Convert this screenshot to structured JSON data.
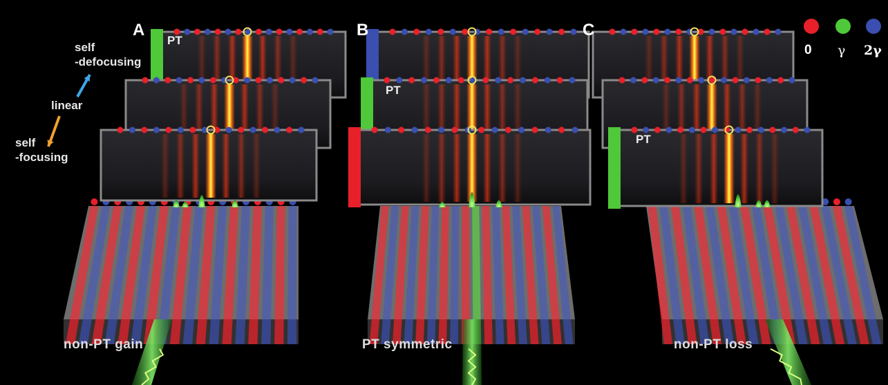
{
  "panels": [
    {
      "letter": "A",
      "caption": "non-PT gain",
      "pt_label": "PT"
    },
    {
      "letter": "B",
      "caption": "PT symmetric",
      "pt_label": "PT"
    },
    {
      "letter": "C",
      "caption": "non-PT loss",
      "pt_label": "PT"
    }
  ],
  "side_labels": {
    "self_defocusing_1": "self",
    "self_defocusing_2": "-defocusing",
    "linear": "linear",
    "self_focusing_1": "self",
    "self_focusing_2": "-focusing"
  },
  "legend": [
    {
      "label": "0",
      "color": "#e8202a"
    },
    {
      "label": "γ",
      "color": "#4fc83a"
    },
    {
      "label": "2γ",
      "color": "#3a4fb0"
    }
  ],
  "colors": {
    "gain": "#e8202a",
    "neutral": "#4fc83a",
    "loss": "#3a4fb0",
    "defocus_arrow": "#3fa6e6",
    "focus_arrow": "#f0a030"
  }
}
